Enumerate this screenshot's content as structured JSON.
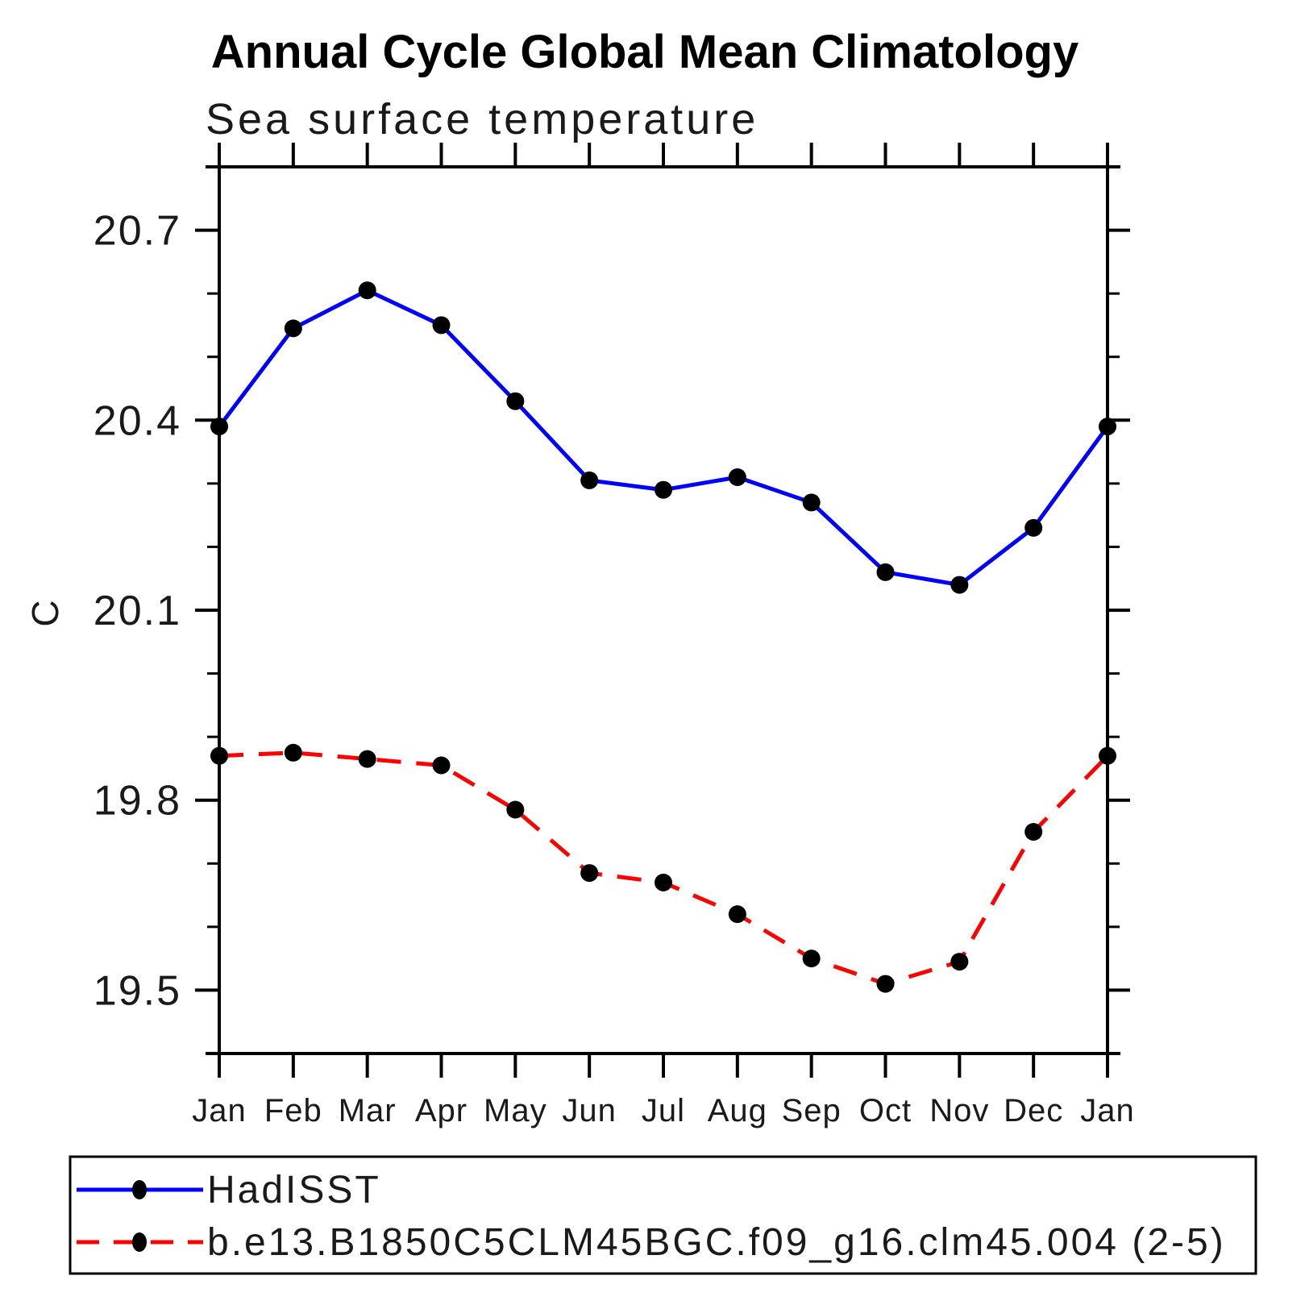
{
  "title": "Annual Cycle Global Mean Climatology",
  "subtitle": "Sea surface temperature",
  "y_axis_label": "C",
  "colors": {
    "axis": "#000000",
    "marker": "#000000",
    "hadisst_line": "#0000ff",
    "model_line": "#ff0000"
  },
  "legend": {
    "entries": [
      {
        "label": "HadISST",
        "line_style": "solid",
        "color": "#0000ff",
        "marker": "filled-circle"
      },
      {
        "label": "b.e13.B1850C5CLM45BGC.f09_g16.clm45.004 (2-5)",
        "line_style": "dashed",
        "color": "#ff0000",
        "marker": "filled-circle"
      }
    ]
  },
  "chart_data": {
    "type": "line",
    "title": "Annual Cycle Global Mean Climatology",
    "subtitle": "Sea surface temperature",
    "xlabel": "",
    "ylabel": "C",
    "categories": [
      "Jan",
      "Feb",
      "Mar",
      "Apr",
      "May",
      "Jun",
      "Jul",
      "Aug",
      "Sep",
      "Oct",
      "Nov",
      "Dec",
      "Jan"
    ],
    "ylim": [
      19.4,
      20.8
    ],
    "yticks_major": [
      19.5,
      19.8,
      20.1,
      20.4,
      20.7
    ],
    "ytick_minor_step": 0.1,
    "grid": false,
    "legend_position": "bottom",
    "series": [
      {
        "name": "HadISST",
        "color": "#0000ff",
        "style": "solid",
        "marker": "filled-circle",
        "values": [
          20.39,
          20.545,
          20.605,
          20.55,
          20.43,
          20.305,
          20.29,
          20.31,
          20.27,
          20.16,
          20.14,
          20.23,
          20.39
        ]
      },
      {
        "name": "b.e13.B1850C5CLM45BGC.f09_g16.clm45.004 (2-5)",
        "color": "#ff0000",
        "style": "dashed",
        "marker": "filled-circle",
        "values": [
          19.87,
          19.875,
          19.865,
          19.855,
          19.785,
          19.685,
          19.67,
          19.62,
          19.55,
          19.51,
          19.545,
          19.75,
          19.87
        ]
      }
    ]
  }
}
